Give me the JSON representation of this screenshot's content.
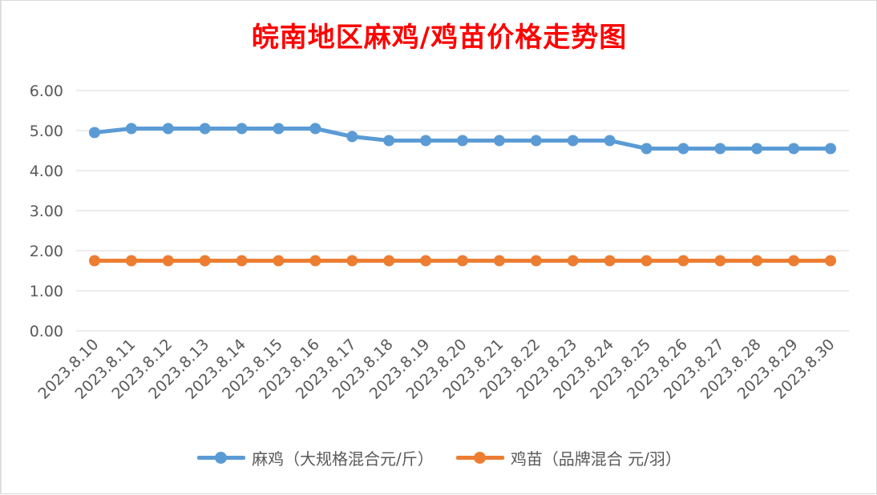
{
  "chart_data": {
    "type": "line",
    "title": "皖南地区麻鸡/鸡苗价格走势图",
    "categories": [
      "2023.8.10",
      "2023.8.11",
      "2023.8.12",
      "2023.8.13",
      "2023.8.14",
      "2023.8.15",
      "2023.8.16",
      "2023.8.17",
      "2023.8.18",
      "2023.8.19",
      "2023.8.20",
      "2023.8.21",
      "2023.8.22",
      "2023.8.23",
      "2023.8.24",
      "2023.8.25",
      "2023.8.26",
      "2023.8.27",
      "2023.8.28",
      "2023.8.29",
      "2023.8.30"
    ],
    "series": [
      {
        "name": "麻鸡（大规格混合元/斤）",
        "color": "#5b9bd5",
        "values": [
          4.95,
          5.05,
          5.05,
          5.05,
          5.05,
          5.05,
          5.05,
          4.85,
          4.75,
          4.75,
          4.75,
          4.75,
          4.75,
          4.75,
          4.75,
          4.55,
          4.55,
          4.55,
          4.55,
          4.55,
          4.55
        ]
      },
      {
        "name": "鸡苗（品牌混合 元/羽）",
        "color": "#ed7d31",
        "values": [
          1.75,
          1.75,
          1.75,
          1.75,
          1.75,
          1.75,
          1.75,
          1.75,
          1.75,
          1.75,
          1.75,
          1.75,
          1.75,
          1.75,
          1.75,
          1.75,
          1.75,
          1.75,
          1.75,
          1.75,
          1.75
        ]
      }
    ],
    "yticks": [
      "0.00",
      "1.00",
      "2.00",
      "3.00",
      "4.00",
      "5.00",
      "6.00"
    ],
    "ylim": [
      0,
      6
    ],
    "xlabel": "",
    "ylabel": "",
    "grid": true,
    "legend": "bottom"
  }
}
